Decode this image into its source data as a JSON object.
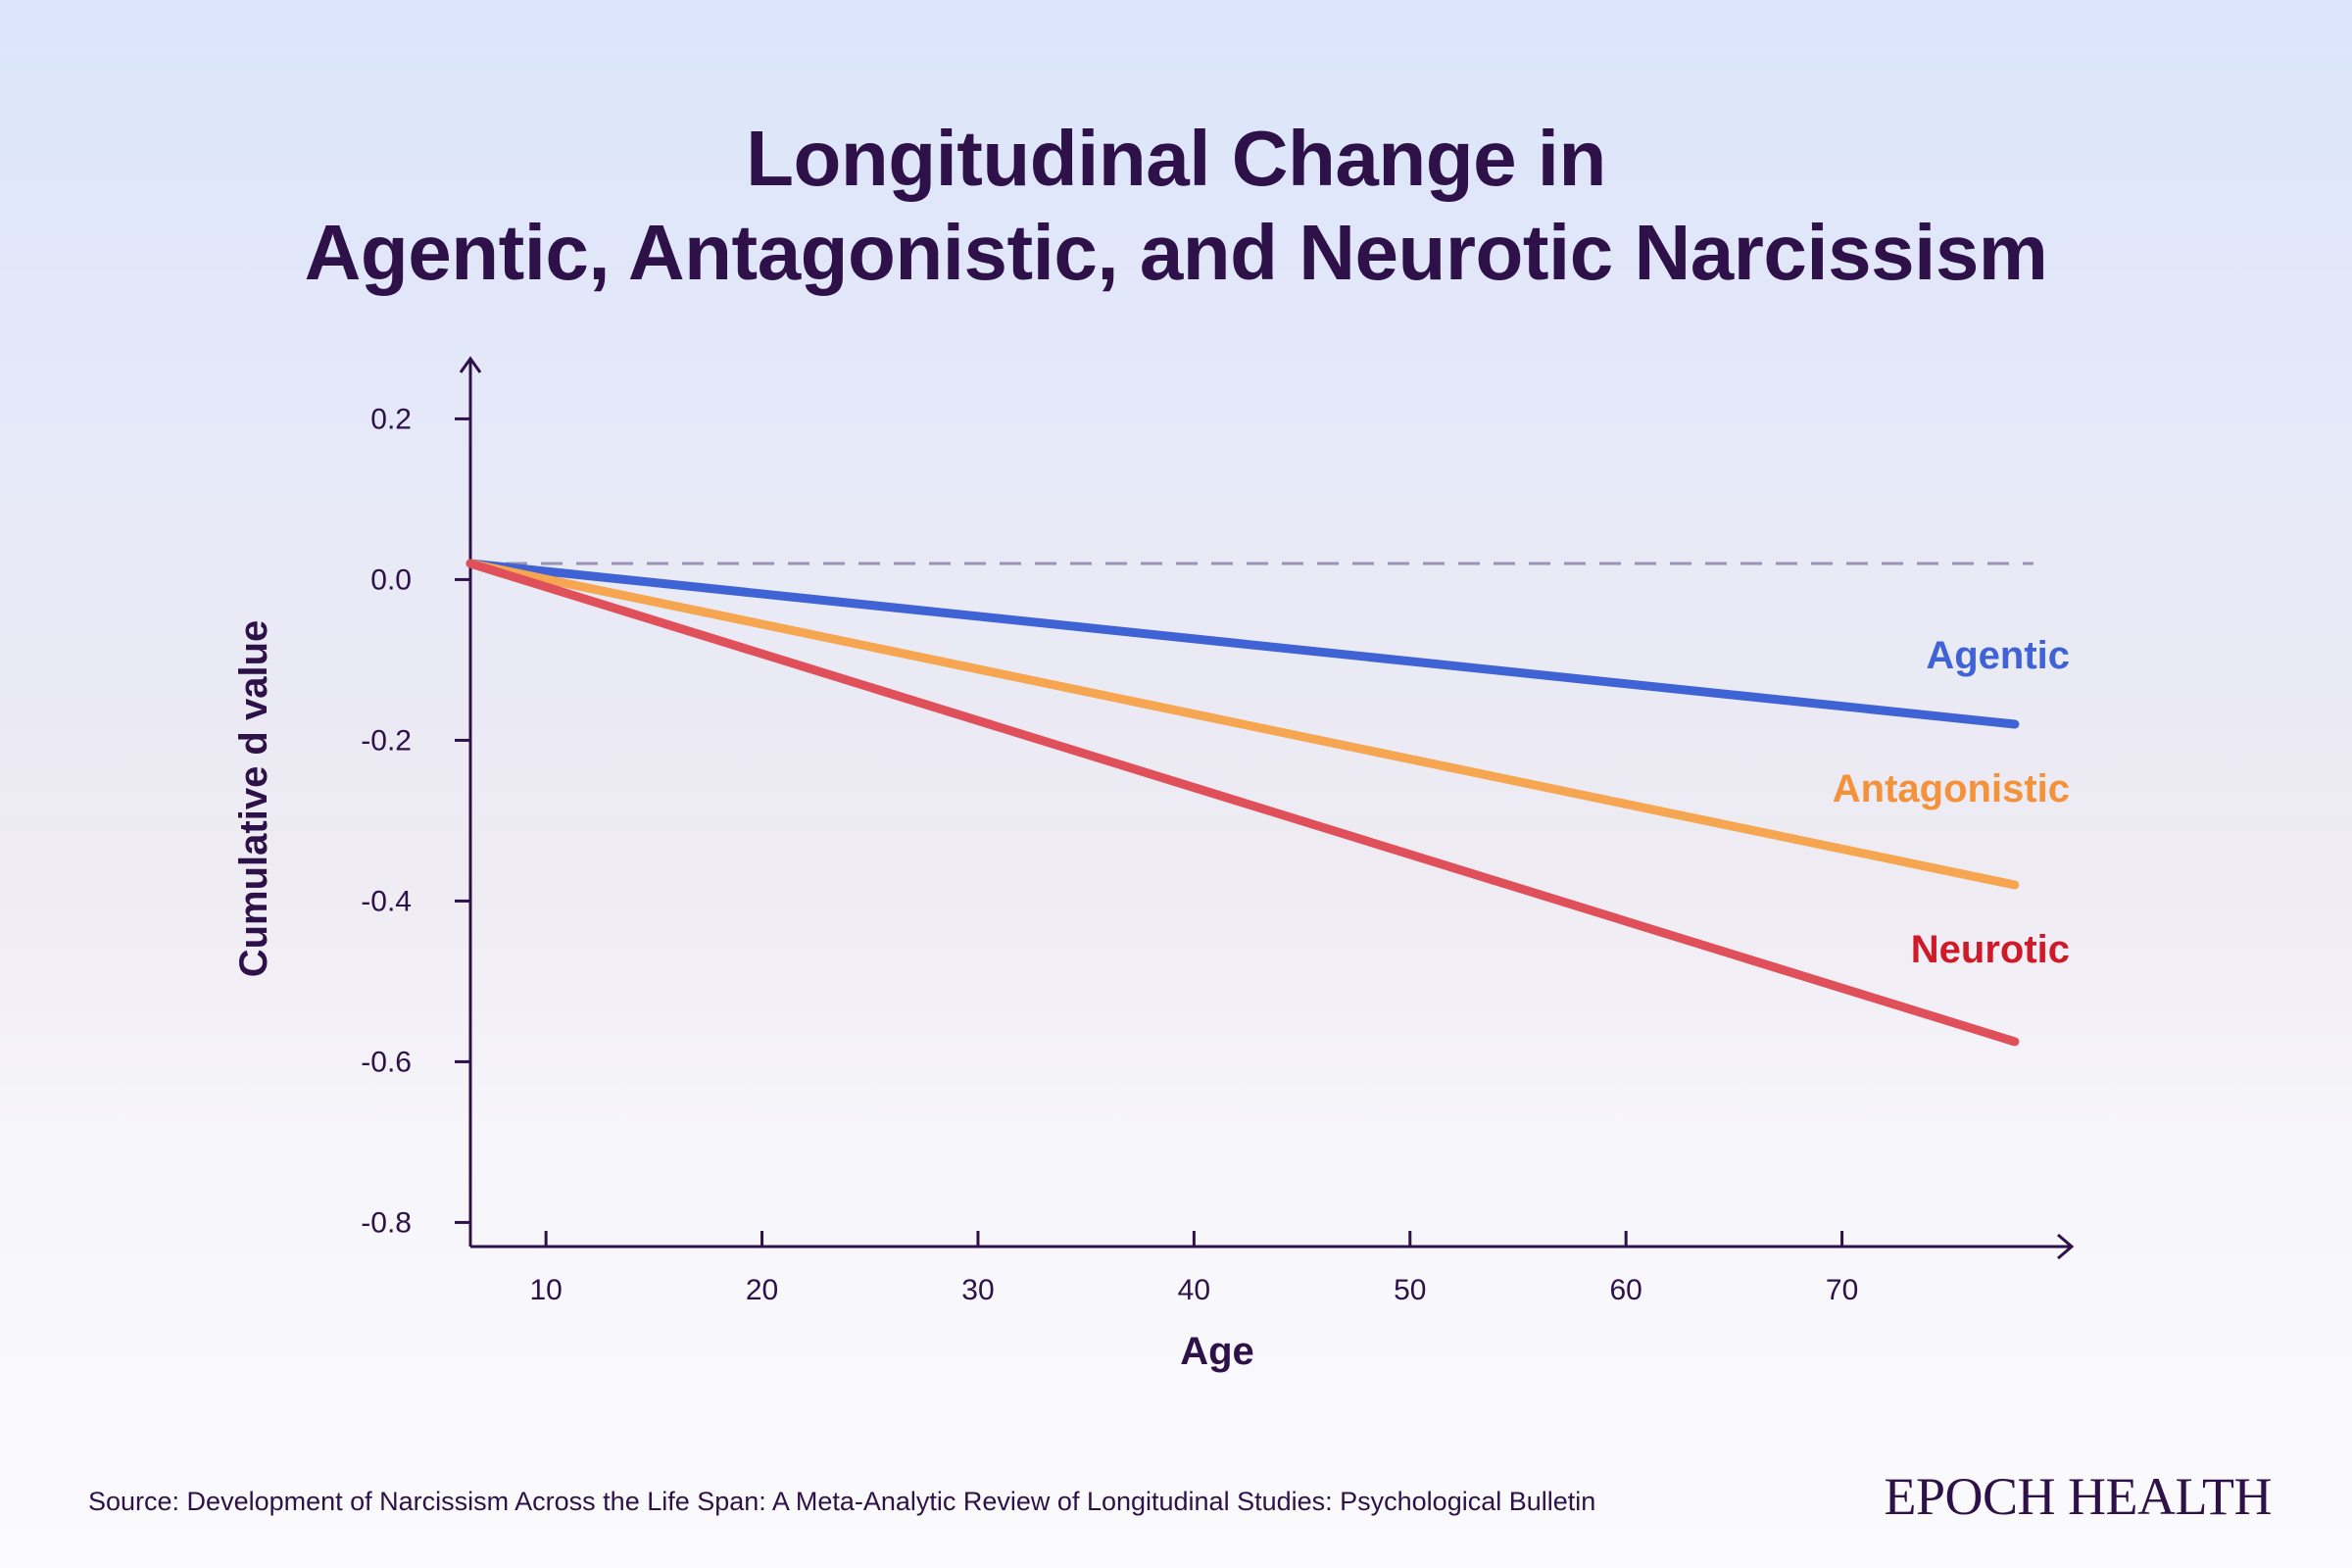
{
  "chart_data": {
    "type": "line",
    "title_lines": [
      "Longitudinal Change in",
      "Agentic, Antagonistic, and Neurotic Narcissism"
    ],
    "xlabel": "Age",
    "ylabel": "Cumulative d value",
    "xlim": [
      6.5,
      80
    ],
    "ylim": [
      -0.83,
      0.27
    ],
    "x_ticks": [
      10,
      20,
      30,
      40,
      50,
      60,
      70
    ],
    "y_ticks": [
      0.2,
      0.0,
      -0.2,
      -0.4,
      -0.6,
      -0.8
    ],
    "y_tick_labels": [
      "0.2",
      "0.0",
      "-0.2",
      "-0.4",
      "-0.6",
      "-0.8"
    ],
    "reference_line": 0.02,
    "legend": "direct labels at right end of lines",
    "grid": false,
    "series": [
      {
        "name": "Agentic",
        "color": "#3f63d4",
        "label_color": "#3f63d4",
        "x": [
          6.5,
          78
        ],
        "y": [
          0.02,
          -0.18
        ]
      },
      {
        "name": "Antagonistic",
        "color": "#f6a551",
        "label_color": "#f3923a",
        "x": [
          6.5,
          78
        ],
        "y": [
          0.02,
          -0.38
        ]
      },
      {
        "name": "Neurotic",
        "color": "#e0505a",
        "label_color": "#cf1a2a",
        "x": [
          6.5,
          78
        ],
        "y": [
          0.02,
          -0.575
        ]
      }
    ]
  },
  "source": "Source: Development of Narcissism Across the Life Span: A Meta-Analytic Review of Longitudinal Studies: Psychological Bulletin",
  "brand": "EPOCH HEALTH",
  "colors": {
    "text": "#2e1148",
    "axis": "#2e1148",
    "reference": "#9a93b4"
  }
}
